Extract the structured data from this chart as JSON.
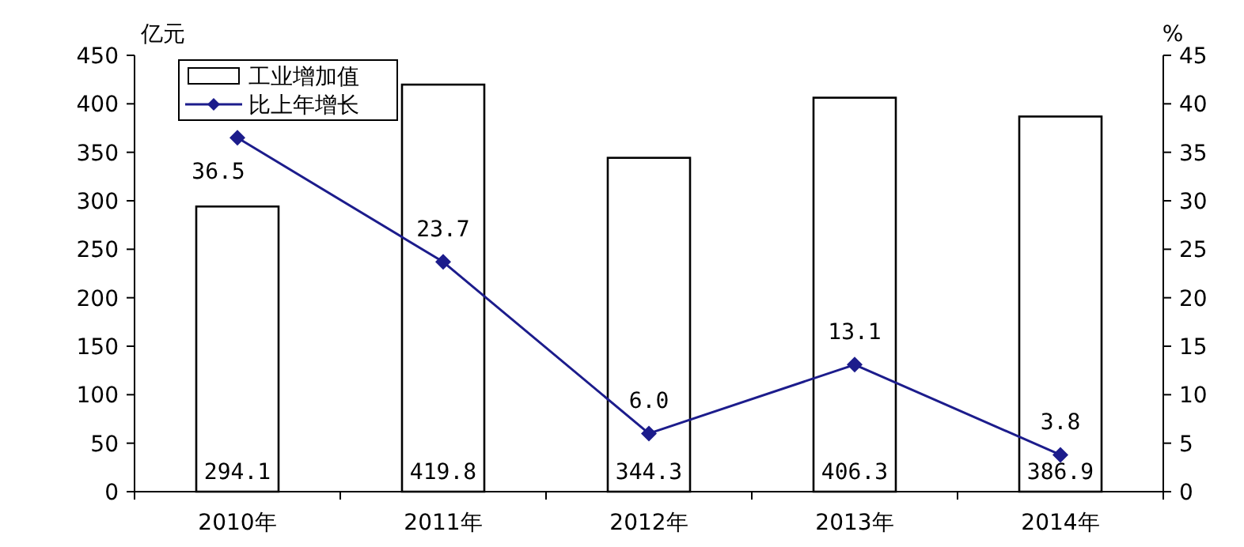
{
  "chart_data": {
    "type": "bar",
    "ylabel": "亿元",
    "y2label": "%",
    "categories": [
      "2010年",
      "2011年",
      "2012年",
      "2013年",
      "2014年"
    ],
    "series": [
      {
        "name": "工业增加值",
        "color": "#ffffff",
        "values": [
          294.1,
          419.8,
          344.3,
          406.3,
          386.9
        ],
        "value_labels": [
          "294.1",
          "419.8",
          "344.3",
          "406.3",
          "386.9"
        ]
      },
      {
        "name": "比上年增长",
        "type": "line",
        "axis": "y2",
        "color": "#1c1c8c",
        "marker": "diamond",
        "values": [
          36.5,
          23.7,
          6.0,
          13.1,
          3.8
        ],
        "value_labels": [
          "36.5",
          "23.7",
          "6.0",
          "13.1",
          "3.8"
        ]
      }
    ],
    "ylim": [
      0,
      450
    ],
    "yticks": [
      0,
      50,
      100,
      150,
      200,
      250,
      300,
      350,
      400,
      450
    ],
    "y2lim": [
      0,
      45
    ],
    "y2ticks": [
      0,
      5,
      10,
      15,
      20,
      25,
      30,
      35,
      40,
      45
    ],
    "legend": "top left",
    "grid": false
  }
}
